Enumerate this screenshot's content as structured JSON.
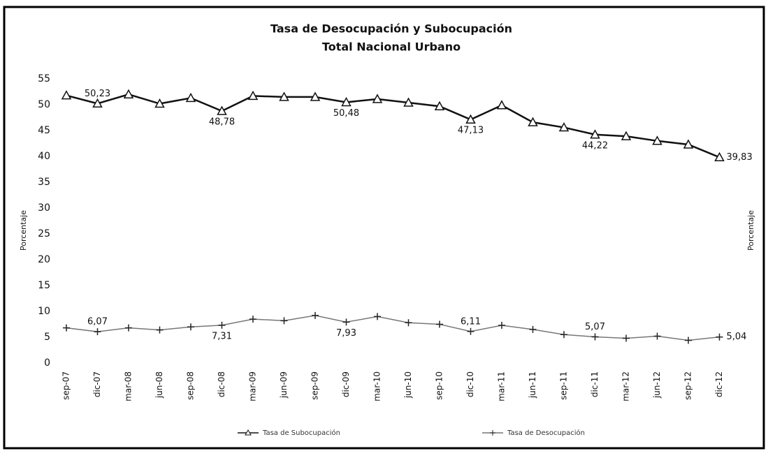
{
  "chart_data": {
    "type": "line",
    "title": [
      "Tasa de Desocupación y Subocupación",
      "Total Nacional Urbano"
    ],
    "y_label": "Porcentaje",
    "y2_label": "Porcentaje",
    "categories": [
      "sep-07",
      "dic-07",
      "mar-08",
      "jun-08",
      "sep-08",
      "dic-08",
      "mar-09",
      "jun-09",
      "sep-09",
      "dic-09",
      "mar-10",
      "jun-10",
      "sep-10",
      "dic-10",
      "mar-11",
      "jun-11",
      "sep-11",
      "dic-11",
      "mar-12",
      "jun-12",
      "sep-12",
      "dic-12"
    ],
    "series": [
      {
        "name": "Tasa de Subocupación",
        "color": "#111111",
        "marker": "triangle",
        "values": [
          51.8,
          50.23,
          52.0,
          50.2,
          51.3,
          48.78,
          51.7,
          51.5,
          51.5,
          50.48,
          51.1,
          50.4,
          49.7,
          47.13,
          49.9,
          46.6,
          45.6,
          44.22,
          43.9,
          43.0,
          42.3,
          39.83
        ],
        "value_labels": [
          null,
          "50,23",
          null,
          null,
          null,
          "48,78",
          null,
          null,
          null,
          "50,48",
          null,
          null,
          null,
          "47,13",
          null,
          null,
          null,
          "44,22",
          null,
          null,
          null,
          "39,83"
        ]
      },
      {
        "name": "Tasa de Desocupación",
        "color": "#777777",
        "marker": "plus",
        "values": [
          6.8,
          6.07,
          6.8,
          6.4,
          7.0,
          7.31,
          8.5,
          8.2,
          9.2,
          7.93,
          9.0,
          7.8,
          7.5,
          6.11,
          7.3,
          6.5,
          5.5,
          5.07,
          4.8,
          5.2,
          4.4,
          5.04
        ],
        "value_labels": [
          null,
          "6,07",
          null,
          null,
          null,
          "7,31",
          null,
          null,
          null,
          "7,93",
          null,
          null,
          null,
          "6,11",
          null,
          null,
          null,
          "5,07",
          null,
          null,
          null,
          "5,04"
        ]
      }
    ],
    "ylim": [
      0,
      55
    ],
    "yticks": [
      0,
      5,
      10,
      15,
      20,
      25,
      30,
      35,
      40,
      45,
      50,
      55
    ],
    "grid": false,
    "legend": "bottom"
  }
}
